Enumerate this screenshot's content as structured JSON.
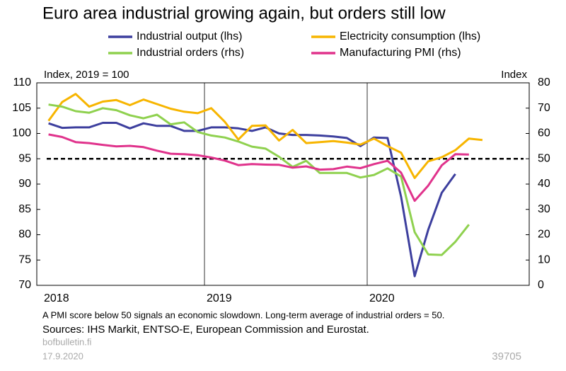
{
  "chart_data": {
    "type": "line",
    "title": "Euro area industrial growing again, but orders still low",
    "y_label": "Index, 2019 = 100",
    "y2_label": "Index",
    "categories": [
      "2018",
      null,
      null,
      null,
      null,
      null,
      null,
      null,
      null,
      null,
      null,
      null,
      "2019",
      null,
      null,
      null,
      null,
      null,
      null,
      null,
      null,
      null,
      null,
      null,
      "2020",
      null,
      null,
      null,
      null,
      null,
      null,
      null,
      null
    ],
    "series": [
      {
        "name": "Industrial output (lhs)",
        "color": "#3d3f9e",
        "values": [
          102,
          101.1,
          101.2,
          101.2,
          102.1,
          102.1,
          101,
          102,
          101.5,
          101.5,
          100.5,
          100.5,
          101.2,
          101.2,
          101,
          100.5,
          101.2,
          100,
          99.7,
          99.7,
          99.6,
          99.4,
          99.1,
          97.5,
          99.2,
          99.1,
          87.5,
          71.8,
          81,
          88.3,
          92,
          null,
          null
        ]
      },
      {
        "name": "Electricity consumption (lhs)",
        "color": "#f7b500",
        "values": [
          102.5,
          106.2,
          107.8,
          105.3,
          106.3,
          106.6,
          105.6,
          106.7,
          105.8,
          104.9,
          104.3,
          104,
          105,
          102.3,
          98.8,
          101.5,
          101.6,
          98.6,
          100.7,
          98.1,
          98.3,
          98.5,
          98.2,
          97.8,
          99,
          97.5,
          96.2,
          91.2,
          94.5,
          95.3,
          96.7,
          99,
          98.7
        ]
      },
      {
        "name": "Industrial orders (rhs)",
        "color": "#8fd14f",
        "axis": "y2",
        "values": [
          71.4,
          70.6,
          68.8,
          68.2,
          70,
          69.2,
          67.2,
          66,
          67.4,
          63.6,
          64.4,
          60.6,
          59.2,
          58.4,
          56.8,
          54.8,
          54,
          50.8,
          46.8,
          49.2,
          44.4,
          44.4,
          44.4,
          42.6,
          43.6,
          46.2,
          43,
          21,
          12.2,
          12,
          17.2,
          24,
          null
        ]
      },
      {
        "name": "Manufacturing PMI (rhs)",
        "color": "#e0338c",
        "axis": "y2",
        "values": [
          59.6,
          58.6,
          56.6,
          56.2,
          55.5,
          54.9,
          55.1,
          54.6,
          53.2,
          52,
          51.8,
          51.4,
          50.5,
          49.3,
          47.5,
          47.9,
          47.7,
          47.6,
          46.5,
          47,
          45.7,
          45.9,
          46.9,
          46.3,
          47.9,
          49.2,
          44.5,
          33.4,
          39.4,
          47.4,
          51.8,
          51.7,
          null
        ]
      }
    ],
    "reference_line": {
      "value": 50,
      "axis": "y2"
    },
    "ylim": [
      70,
      110
    ],
    "yticks": [
      70,
      75,
      80,
      85,
      90,
      95,
      100,
      105,
      110
    ],
    "y2lim": [
      0,
      80
    ],
    "y2ticks": [
      0,
      10,
      20,
      30,
      40,
      50,
      60,
      70,
      80
    ],
    "footnote": "A PMI score below 50 signals an economic slowdown. Long-term average of industrial orders = 50.",
    "sources": "Sources: IHS Markit, ENTSO-E, European Commission and Eurostat.",
    "website": "bofbulletin.fi",
    "date": "17.9.2020",
    "chart_id": "39705"
  }
}
